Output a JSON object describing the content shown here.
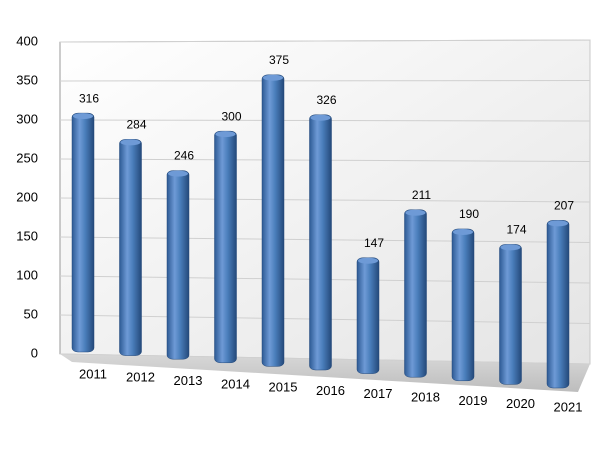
{
  "chart_data": {
    "type": "bar",
    "categories": [
      "2011",
      "2012",
      "2013",
      "2014",
      "2015",
      "2016",
      "2017",
      "2018",
      "2019",
      "2020",
      "2021"
    ],
    "values": [
      316,
      284,
      246,
      300,
      375,
      326,
      147,
      211,
      190,
      174,
      207
    ],
    "color": "#4a7ebb",
    "ylim": [
      0,
      400
    ],
    "yticks": [
      0,
      50,
      100,
      150,
      200,
      250,
      300,
      350,
      400
    ],
    "grid": true
  }
}
